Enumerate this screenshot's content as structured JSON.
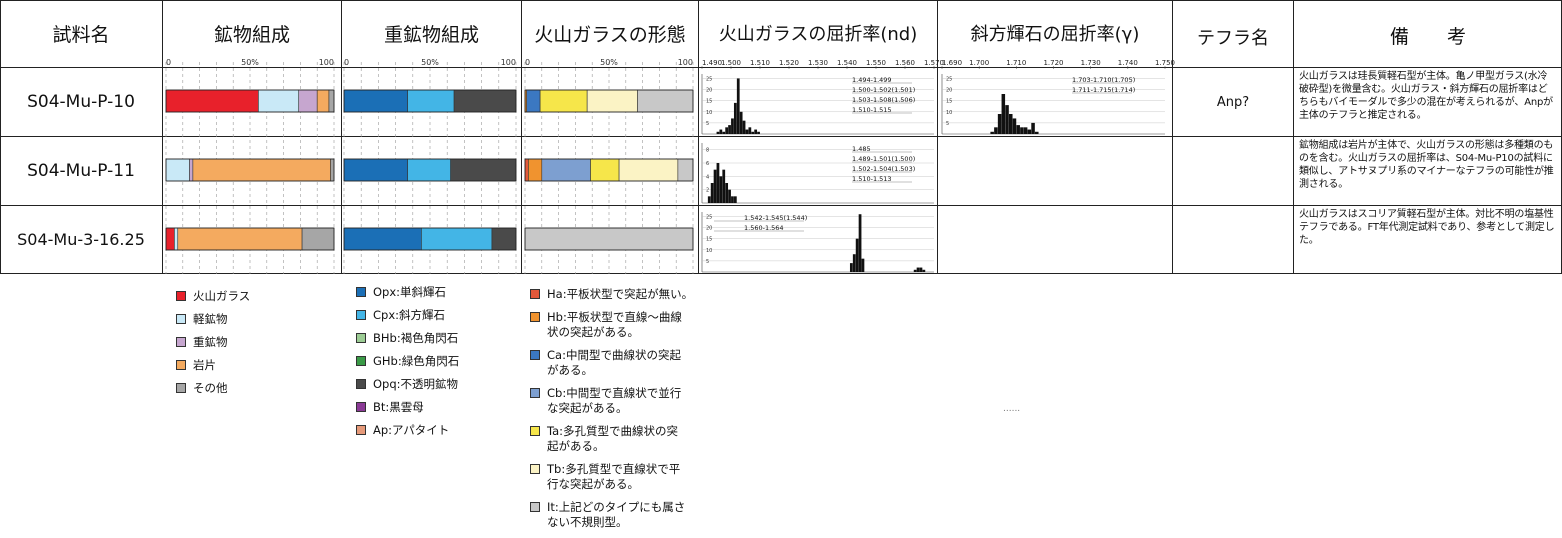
{
  "header": {
    "sample": "試料名",
    "mineral": "鉱物組成",
    "heavy": "重鉱物組成",
    "glass_form": "火山ガラスの形態",
    "glass_ri": "火山ガラスの屈折率(nd)",
    "opx_ri": "斜方輝石の屈折率(γ)",
    "tephra": "テフラ名",
    "remarks": "備　　考"
  },
  "pct_ticks": [
    "0",
    "50%",
    "100"
  ],
  "nd_ticks": [
    "1.490",
    "1.500",
    "1.510",
    "1.520",
    "1.530",
    "1.540",
    "1.550",
    "1.560",
    "1.570"
  ],
  "gamma_ticks": [
    "1.690",
    "1.700",
    "1.710",
    "1.720",
    "1.730",
    "1.740",
    "1.750"
  ],
  "samples": [
    {
      "name": "S04-Mu-P-10",
      "tephra": "Anp?",
      "remarks": "火山ガラスは珪長質軽石型が主体。亀ノ甲型ガラス(水冷破砕型)を微量含む。火山ガラス・斜方輝石の屈折率はどちらもバイモーダルで多少の混在が考えられるが、Anpが主体のテフラと推定される。"
    },
    {
      "name": "S04-Mu-P-11",
      "tephra": "",
      "remarks": "鉱物組成は岩片が主体で、火山ガラスの形態は多種類のものを含む。火山ガラスの屈折率は、S04-Mu-P10の試料に類似し、アトサヌプリ系のマイナーなテフラの可能性が推測される。"
    },
    {
      "name": "S04-Mu-3-16.25",
      "tephra": "",
      "remarks": "火山ガラスはスコリア質軽石型が主体。対比不明の塩基性テフラである。FT年代測定試料であり、参考として測定した。"
    }
  ],
  "legend_mineral": [
    {
      "label": "火山ガラス",
      "color": "#e8212b"
    },
    {
      "label": "軽鉱物",
      "color": "#c9e9f7"
    },
    {
      "label": "重鉱物",
      "color": "#c6a6cf"
    },
    {
      "label": "岩片",
      "color": "#f4aa5f"
    },
    {
      "label": "その他",
      "color": "#a6a6a6"
    }
  ],
  "legend_heavy": [
    {
      "label": "Opx:単斜輝石",
      "color": "#1b6fb6"
    },
    {
      "label": "Cpx:斜方輝石",
      "color": "#43b5e6"
    },
    {
      "label": "BHb:褐色角閃石",
      "color": "#9ccc94"
    },
    {
      "label": "GHb:緑色角閃石",
      "color": "#3a9a47"
    },
    {
      "label": "Opq:不透明鉱物",
      "color": "#4a4a4a"
    },
    {
      "label": "Bt:黒雲母",
      "color": "#8b3a96"
    },
    {
      "label": "Ap:アパタイト",
      "color": "#e69a7a"
    }
  ],
  "legend_glass": [
    {
      "lines": [
        "Ha:平板状型で突起が無い。"
      ],
      "color": "#e2583a"
    },
    {
      "lines": [
        "Hb:平板状型で直線〜曲線",
        "状の突起がある。"
      ],
      "color": "#f0932f"
    },
    {
      "lines": [
        "Ca:中間型で曲線状の突起",
        "がある。"
      ],
      "color": "#3b78c2"
    },
    {
      "lines": [
        "Cb:中間型で直線状で並行",
        "な突起がある。"
      ],
      "color": "#7d9fd0"
    },
    {
      "lines": [
        "Ta:多孔質型で曲線状の突",
        "起がある。"
      ],
      "color": "#f6e64a"
    },
    {
      "lines": [
        "Tb:多孔質型で直線状で平",
        "行な突起がある。"
      ],
      "color": "#fbf3c5"
    },
    {
      "lines": [
        "It:上記どのタイプにも属さ",
        "ない不規則型。"
      ],
      "color": "#c8c8c8"
    }
  ],
  "footer_mark": "......",
  "chart_data": [
    {
      "type": "bar",
      "stacked": true,
      "title": "鉱物組成",
      "xlim": [
        0,
        100
      ],
      "categories": [
        "S04-Mu-P-10",
        "S04-Mu-P-11",
        "S04-Mu-3-16.25"
      ],
      "series": [
        {
          "name": "火山ガラス",
          "color": "#e8212b",
          "values": [
            55,
            0,
            5
          ]
        },
        {
          "name": "軽鉱物",
          "color": "#c9e9f7",
          "values": [
            24,
            14,
            2
          ]
        },
        {
          "name": "重鉱物",
          "color": "#c6a6cf",
          "values": [
            11,
            2,
            0
          ]
        },
        {
          "name": "岩片",
          "color": "#f4aa5f",
          "values": [
            7,
            82,
            74
          ]
        },
        {
          "name": "その他",
          "color": "#a6a6a6",
          "values": [
            3,
            2,
            19
          ]
        }
      ]
    },
    {
      "type": "bar",
      "stacked": true,
      "title": "重鉱物組成",
      "xlim": [
        0,
        100
      ],
      "categories": [
        "S04-Mu-P-10",
        "S04-Mu-P-11",
        "S04-Mu-3-16.25"
      ],
      "series": [
        {
          "name": "Opx:単斜輝石",
          "color": "#1b6fb6",
          "values": [
            37,
            37,
            45
          ]
        },
        {
          "name": "Cpx:斜方輝石",
          "color": "#43b5e6",
          "values": [
            27,
            25,
            41
          ]
        },
        {
          "name": "Opq:不透明鉱物",
          "color": "#4a4a4a",
          "values": [
            36,
            38,
            14
          ]
        }
      ]
    },
    {
      "type": "bar",
      "stacked": true,
      "title": "火山ガラスの形態",
      "xlim": [
        0,
        100
      ],
      "categories": [
        "S04-Mu-P-10",
        "S04-Mu-P-11",
        "S04-Mu-3-16.25"
      ],
      "series": [
        {
          "name": "Ha",
          "color": "#e2583a",
          "values": [
            0,
            2,
            0
          ]
        },
        {
          "name": "Hb",
          "color": "#f0932f",
          "values": [
            1,
            8,
            0
          ]
        },
        {
          "name": "Ca",
          "color": "#3b78c2",
          "values": [
            8,
            0,
            0
          ]
        },
        {
          "name": "Cb",
          "color": "#7d9fd0",
          "values": [
            0,
            29,
            0
          ]
        },
        {
          "name": "Ta",
          "color": "#f6e64a",
          "values": [
            28,
            17,
            0
          ]
        },
        {
          "name": "Tb",
          "color": "#fbf3c5",
          "values": [
            30,
            35,
            0
          ]
        },
        {
          "name": "It",
          "color": "#c8c8c8",
          "values": [
            33,
            9,
            100
          ]
        }
      ]
    },
    {
      "type": "bar",
      "subtype": "histogram",
      "title": "火山ガラスの屈折率(nd)",
      "xlim": [
        1.49,
        1.57
      ],
      "panels": [
        {
          "sample": "S04-Mu-P-10",
          "yticks": [
            5,
            10,
            15,
            20,
            25
          ],
          "ymax": 27,
          "x": [
            1.4955,
            1.4965,
            1.4975,
            1.4985,
            1.4995,
            1.5005,
            1.5015,
            1.5025,
            1.5035,
            1.5045,
            1.5055,
            1.5065,
            1.5075,
            1.5085,
            1.5095,
            1.5105
          ],
          "y": [
            1,
            2,
            1,
            3,
            4,
            7,
            14,
            25,
            10,
            6,
            2,
            3,
            1,
            2,
            1,
            0
          ],
          "annotations": [
            "1.494-1.499",
            "1.500-1.502(1.501)",
            "1.503-1.508(1.506)",
            "1.510-1.515"
          ]
        },
        {
          "sample": "S04-Mu-P-11",
          "yticks": [
            2,
            4,
            6,
            8
          ],
          "ymax": 9,
          "x": [
            1.4925,
            1.4935,
            1.4945,
            1.4955,
            1.4965,
            1.4975,
            1.4985,
            1.4995,
            1.5005,
            1.5015
          ],
          "y": [
            1,
            3,
            5,
            6,
            4,
            5,
            3,
            2,
            1,
            1
          ],
          "annotations": [
            "1.485",
            "1.489-1.501(1.500)",
            "1.502-1.504(1.503)",
            "1.510-1.513"
          ]
        },
        {
          "sample": "S04-Mu-3-16.25",
          "yticks": [
            5,
            10,
            15,
            20,
            25
          ],
          "ymax": 27,
          "x": [
            1.5415,
            1.5425,
            1.5435,
            1.5445,
            1.5455,
            1.5635,
            1.5645,
            1.5655,
            1.5665
          ],
          "y": [
            4,
            8,
            15,
            26,
            6,
            1,
            2,
            2,
            1
          ],
          "annotations": [
            "1.542-1.545(1.544)",
            "1.560-1.564"
          ]
        }
      ]
    },
    {
      "type": "bar",
      "subtype": "histogram",
      "title": "斜方輝石の屈折率(γ)",
      "xlim": [
        1.69,
        1.75
      ],
      "panels": [
        {
          "sample": "S04-Mu-P-10",
          "yticks": [
            5,
            10,
            15,
            20,
            25
          ],
          "ymax": 27,
          "x": [
            1.7035,
            1.7045,
            1.7055,
            1.7065,
            1.7075,
            1.7085,
            1.7095,
            1.7105,
            1.7115,
            1.7125,
            1.7135,
            1.7145,
            1.7155
          ],
          "y": [
            1,
            3,
            9,
            18,
            13,
            9,
            7,
            4,
            3,
            3,
            2,
            5,
            1
          ],
          "annotations": [
            "1.703-1.710(1.705)",
            "1.711-1.715(1.714)"
          ]
        }
      ]
    }
  ]
}
